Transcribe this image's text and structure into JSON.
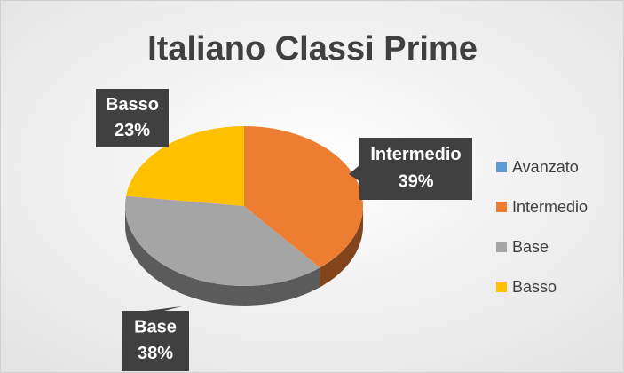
{
  "chart_data": {
    "type": "pie",
    "title": "Italiano Classi Prime",
    "categories": [
      "Avanzato",
      "Intermedio",
      "Base",
      "Basso"
    ],
    "values": [
      0,
      39,
      38,
      23
    ],
    "value_labels": [
      null,
      "39%",
      "38%",
      "23%"
    ],
    "colors": [
      "#5b9bd5",
      "#ed7d31",
      "#a5a5a5",
      "#ffc000"
    ],
    "legend": "right"
  }
}
